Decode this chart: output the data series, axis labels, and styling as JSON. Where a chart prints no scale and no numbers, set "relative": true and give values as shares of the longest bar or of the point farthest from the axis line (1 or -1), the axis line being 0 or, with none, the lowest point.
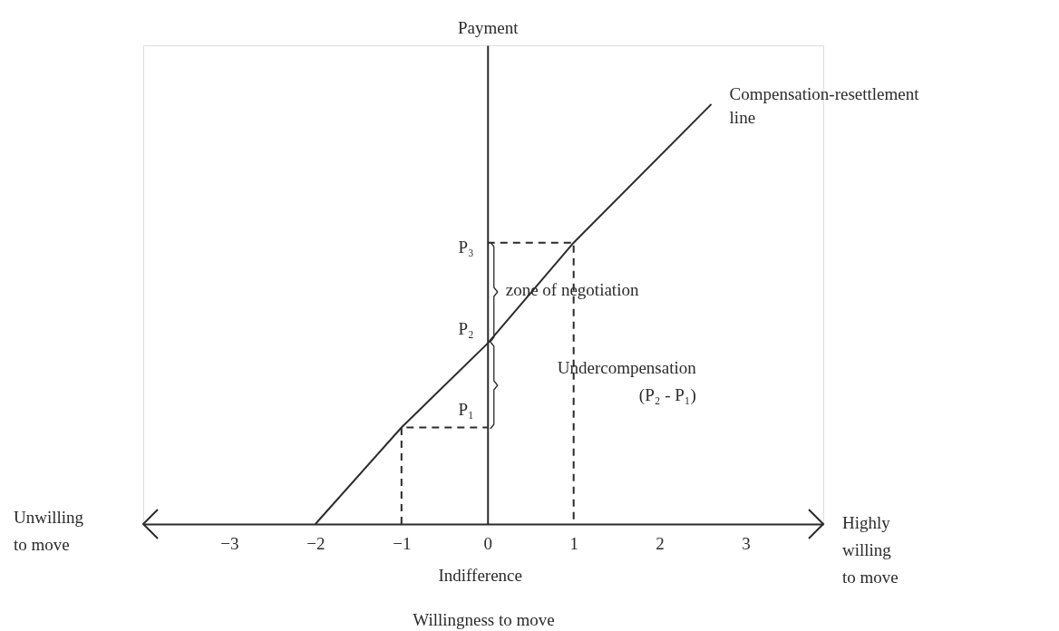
{
  "chart_data": {
    "type": "line",
    "relative": true,
    "xlabel": "Willingness to move",
    "ylabel": "Payment",
    "xlim": [
      -4,
      3.9
    ],
    "xticks": [
      -3,
      -2,
      -1,
      0,
      1,
      2,
      3
    ],
    "series": [
      {
        "name": "Compensation-resettlement\nline",
        "color": "#2b2b2b",
        "line_style": "solid",
        "x": [
          -2,
          -1,
          0,
          1,
          2.6
        ],
        "values": [
          0,
          0.23,
          0.43,
          0.67,
          1
        ]
      },
      {
        "color": "#2b2b2b",
        "line_style": "dashed",
        "x": [
          -1,
          -1,
          0
        ],
        "values": [
          0,
          0.23,
          0.23
        ]
      },
      {
        "color": "#2b2b2b",
        "line_style": "dashed",
        "x": [
          0,
          1,
          1
        ],
        "values": [
          0.67,
          0.67,
          0
        ]
      }
    ],
    "annotations": [
      "P₁",
      "P₂",
      "P₃",
      "zone of negotiation",
      "Undercompensation\n(P₂ - P₁)",
      "Indifference",
      "Unwilling\nto move",
      "Highly\nwilling\nto move"
    ]
  }
}
